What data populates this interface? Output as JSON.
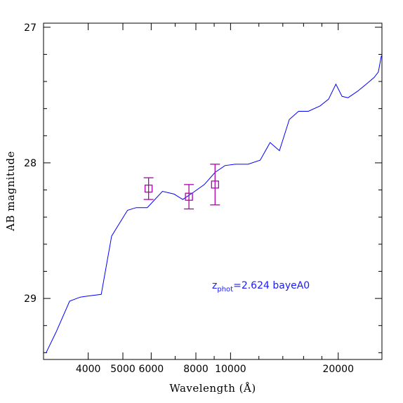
{
  "chart_data": {
    "type": "line",
    "xlabel": "Wavelength (Å)",
    "ylabel": "AB magnitude",
    "x_scale": "log",
    "y_inverted": true,
    "xlim": [
      3000,
      26500
    ],
    "ylim": [
      29.45,
      26.97
    ],
    "x_ticks": [
      4000,
      5000,
      6000,
      8000,
      10000,
      20000
    ],
    "x_tick_labels": [
      "4000",
      "5000",
      "6000",
      "8000",
      "10000",
      "20000"
    ],
    "y_ticks": [
      27,
      28,
      29
    ],
    "y_tick_labels": [
      "27",
      "28",
      "29"
    ],
    "grid": false,
    "series": [
      {
        "color": "#0000ff",
        "x": [
          3050,
          3250,
          3550,
          3800,
          4050,
          4350,
          4650,
          5150,
          5450,
          5850,
          6450,
          6950,
          7350,
          7850,
          8450,
          9050,
          9650,
          10300,
          11200,
          12100,
          12900,
          13700,
          14600,
          15500,
          16500,
          17800,
          18800,
          19700,
          20500,
          21300,
          22700,
          24200,
          25200,
          25900,
          26400
        ],
        "y": [
          29.4,
          29.25,
          29.02,
          28.99,
          28.98,
          28.97,
          28.54,
          28.35,
          28.33,
          28.33,
          28.21,
          28.23,
          28.27,
          28.22,
          28.16,
          28.07,
          28.02,
          28.01,
          28.01,
          27.98,
          27.85,
          27.91,
          27.68,
          27.62,
          27.62,
          27.58,
          27.53,
          27.42,
          27.51,
          27.52,
          27.47,
          27.41,
          27.37,
          27.33,
          27.21
        ]
      }
    ],
    "points": {
      "color": "#b000b0",
      "x": [
        5900,
        7650,
        9050
      ],
      "y": [
        28.19,
        28.25,
        28.16
      ],
      "y_err": [
        0.08,
        0.09,
        0.15
      ]
    },
    "annotation": {
      "main": "z",
      "sub": "phot",
      "rest": "=2.624 bayeA0",
      "color": "#1a1aff"
    }
  }
}
